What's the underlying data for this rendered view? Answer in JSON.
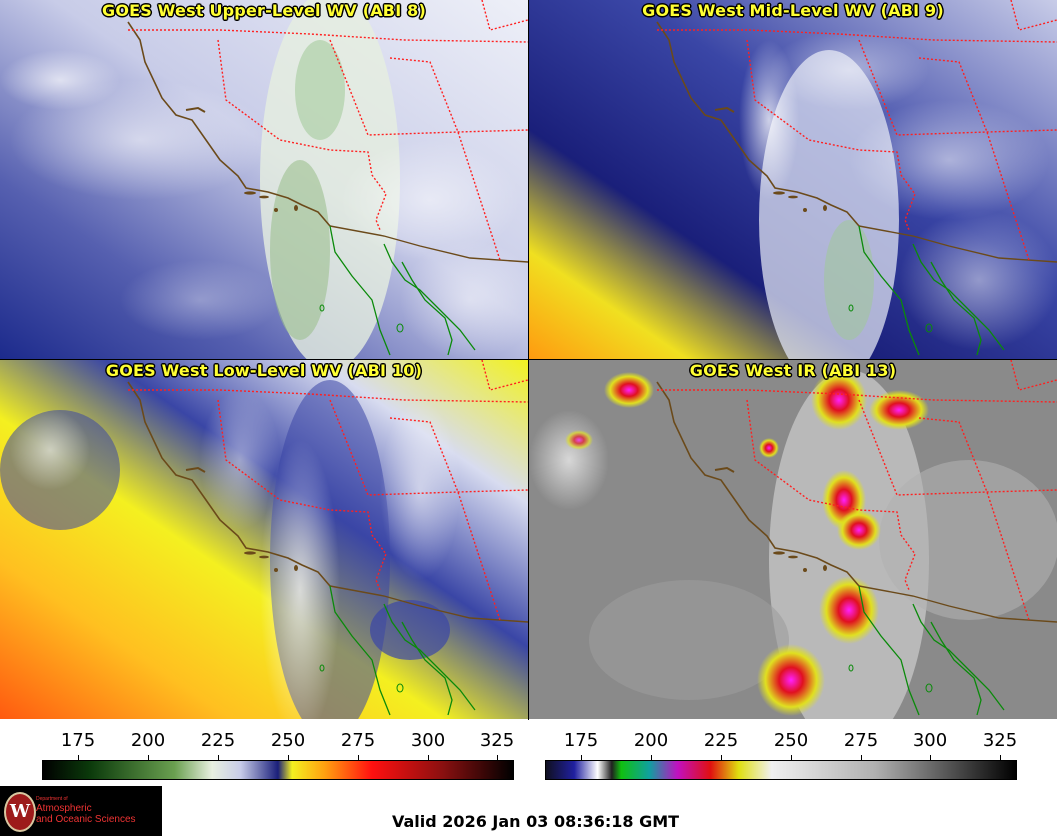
{
  "panels": [
    {
      "id": "upper",
      "title": "GOES West Upper-Level WV (ABI 8)"
    },
    {
      "id": "mid",
      "title": "GOES West Mid-Level WV (ABI 9)"
    },
    {
      "id": "low",
      "title": "GOES West Low-Level WV (ABI 10)"
    },
    {
      "id": "ir",
      "title": "GOES West IR (ABI 13)"
    }
  ],
  "colorbars": {
    "wv": {
      "ticks": [
        "175",
        "200",
        "225",
        "250",
        "275",
        "300",
        "325"
      ]
    },
    "ir": {
      "ticks": [
        "175",
        "200",
        "225",
        "250",
        "275",
        "300",
        "325"
      ]
    }
  },
  "logo": {
    "seal_letter": "W",
    "dept_small": "Department of",
    "dept_line1": "Atmospheric",
    "dept_line2": "and Oceanic Sciences"
  },
  "valid_time": "Valid 2026 Jan 03 08:36:18 GMT",
  "colors": {
    "title_yellow": "#ffff33",
    "state_border": "#ff2020",
    "coastline": "#6b4a1a",
    "mexico_border": "#0a8a0a"
  }
}
